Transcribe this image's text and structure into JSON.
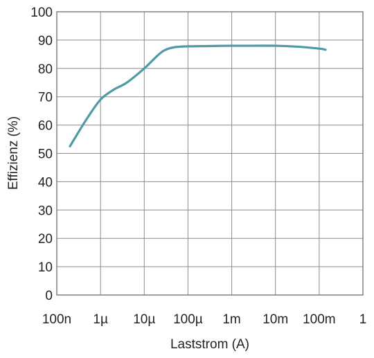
{
  "chart_data": {
    "type": "line",
    "xlabel": "Laststrom (A)",
    "ylabel": "Effizienz (%)",
    "x_scale": "log",
    "xlim": [
      1e-07,
      1
    ],
    "ylim": [
      0,
      100
    ],
    "grid": true,
    "x_ticks": [
      {
        "value": 1e-07,
        "label": "100n"
      },
      {
        "value": 1e-06,
        "label": "1µ"
      },
      {
        "value": 1e-05,
        "label": "10µ"
      },
      {
        "value": 0.0001,
        "label": "100µ"
      },
      {
        "value": 0.001,
        "label": "1m"
      },
      {
        "value": 0.01,
        "label": "10m"
      },
      {
        "value": 0.1,
        "label": "100m"
      },
      {
        "value": 1,
        "label": "1"
      }
    ],
    "y_ticks": [
      {
        "value": 0,
        "label": "0"
      },
      {
        "value": 10,
        "label": "10"
      },
      {
        "value": 20,
        "label": "20"
      },
      {
        "value": 30,
        "label": "30"
      },
      {
        "value": 40,
        "label": "40"
      },
      {
        "value": 50,
        "label": "50"
      },
      {
        "value": 60,
        "label": "60"
      },
      {
        "value": 70,
        "label": "70"
      },
      {
        "value": 80,
        "label": "80"
      },
      {
        "value": 90,
        "label": "90"
      },
      {
        "value": 100,
        "label": "100"
      }
    ],
    "series": [
      {
        "color": "#4f9aa5",
        "x": [
          2e-07,
          3e-07,
          5e-07,
          1e-06,
          2e-06,
          4e-06,
          1e-05,
          2e-05,
          3e-05,
          5e-05,
          0.0001,
          0.0003,
          0.001,
          0.003,
          0.01,
          0.03,
          0.1,
          0.14
        ],
        "y": [
          52.5,
          57,
          62.5,
          69,
          72.5,
          75,
          80,
          84.5,
          86.5,
          87.5,
          87.8,
          87.9,
          88,
          88,
          88,
          87.7,
          87,
          86.6
        ]
      }
    ]
  }
}
